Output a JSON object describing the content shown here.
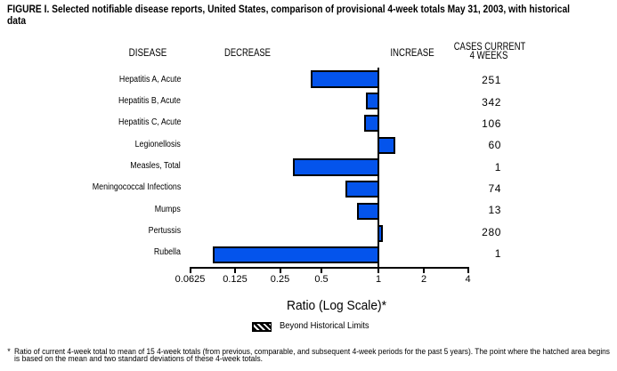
{
  "title_lines": [
    "FIGURE I. Selected notifiable disease reports, United States, comparison of provisional 4-week totals May 31, 2003, with historical",
    "data"
  ],
  "columns": {
    "disease": "DISEASE",
    "decrease": "DECREASE",
    "increase": "INCREASE",
    "cases_line1": "CASES CURRENT",
    "cases_line2": "4 WEEKS"
  },
  "chart_data": {
    "type": "bar",
    "orientation": "horizontal",
    "x_scale": "log",
    "baseline_value": 1,
    "x_ticks": [
      0.0625,
      0.125,
      0.25,
      0.5,
      1,
      2,
      4
    ],
    "xlabel": "Ratio (Log Scale)*",
    "rows": [
      {
        "disease": "Hepatitis A, Acute",
        "ratio": 0.42,
        "cases": "251",
        "direction": "decrease"
      },
      {
        "disease": "Hepatitis B, Acute",
        "ratio": 0.86,
        "cases": "342",
        "direction": "decrease"
      },
      {
        "disease": "Hepatitis C, Acute",
        "ratio": 0.84,
        "cases": "106",
        "direction": "decrease"
      },
      {
        "disease": "Legionellosis",
        "ratio": 1.29,
        "cases": "60",
        "direction": "increase"
      },
      {
        "disease": "Measles, Total",
        "ratio": 0.31,
        "cases": "1",
        "direction": "decrease"
      },
      {
        "disease": "Meningococcal Infections",
        "ratio": 0.67,
        "cases": "74",
        "direction": "decrease"
      },
      {
        "disease": "Mumps",
        "ratio": 0.77,
        "cases": "13",
        "direction": "decrease"
      },
      {
        "disease": "Pertussis",
        "ratio": 1.07,
        "cases": "280",
        "direction": "increase"
      },
      {
        "disease": "Rubella",
        "ratio": 0.089,
        "cases": "1",
        "direction": "decrease"
      }
    ],
    "legend": {
      "label": "Beyond Historical Limits",
      "swatch": "diagonal-hatch"
    }
  },
  "footnote": {
    "marker": "*",
    "lines": [
      "Ratio of current 4-week total to mean of 15 4-week totals (from previous, comparable, and subsequent 4-week periods for the past 5 years). The point where the hatched area begins",
      "is based on the mean and two standard deviations of these 4-week totals."
    ]
  },
  "colors": {
    "bar_fill": "#0454EC",
    "bar_border": "#000000",
    "text": "#000000",
    "background": "#FFFFFF"
  }
}
